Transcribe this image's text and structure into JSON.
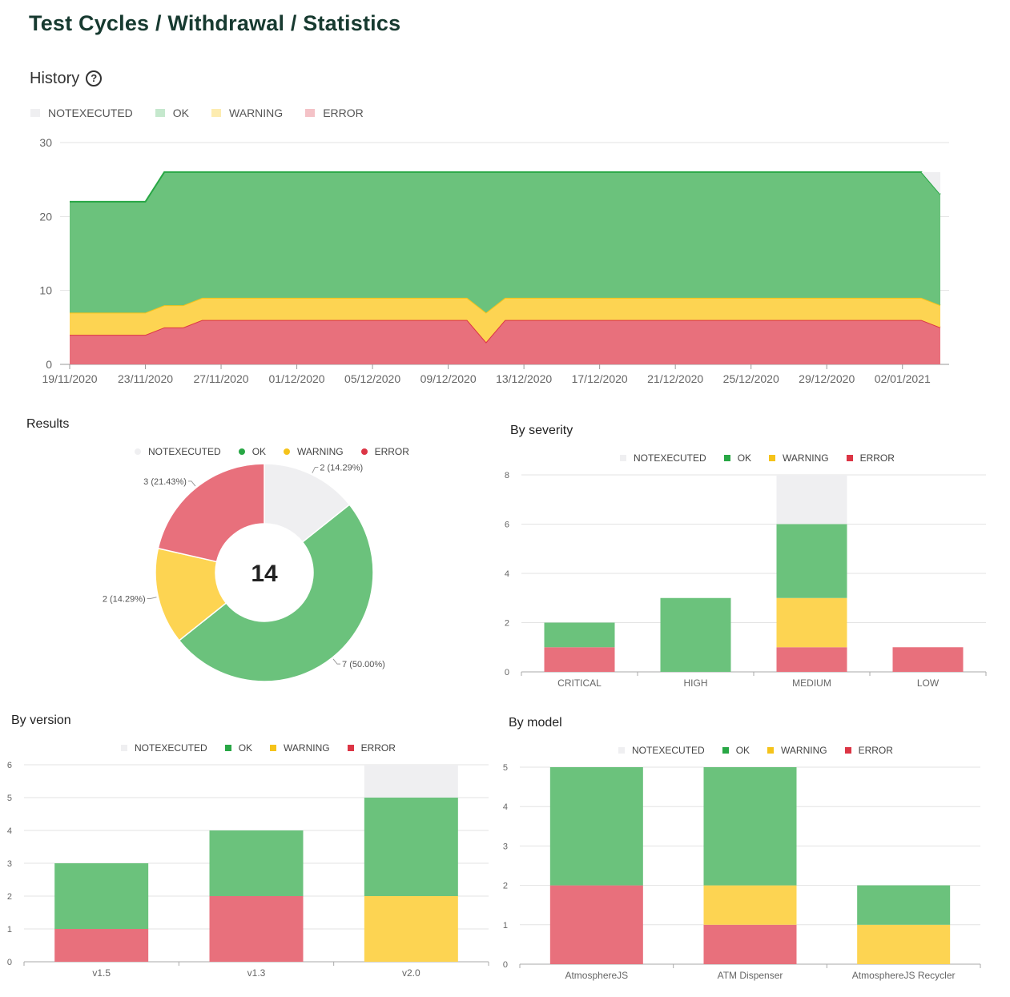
{
  "page": {
    "title": "Test Cycles / Withdrawal / Statistics"
  },
  "history": {
    "title": "History",
    "help_icon": "question-circle-icon"
  },
  "legend": {
    "notexecuted": "NOTEXECUTED",
    "ok": "OK",
    "warning": "WARNING",
    "error": "ERROR"
  },
  "colors": {
    "notexecuted": "#efeff1",
    "ok": "#6bc27c",
    "warning": "#fdd452",
    "error": "#e8707c",
    "ok_line": "#28a745",
    "warning_line": "#f5c31a",
    "error_line": "#dc3545"
  },
  "results": {
    "title": "Results",
    "total": "14"
  },
  "severity": {
    "title": "By severity"
  },
  "version": {
    "title": "By version"
  },
  "model": {
    "title": "By model"
  },
  "chart_data": [
    {
      "id": "history",
      "type": "area",
      "stacked": true,
      "x_tick_labels": [
        "19/11/2020",
        "23/11/2020",
        "27/11/2020",
        "01/12/2020",
        "05/12/2020",
        "09/12/2020",
        "13/12/2020",
        "17/12/2020",
        "21/12/2020",
        "25/12/2020",
        "29/12/2020",
        "02/01/2021"
      ],
      "x_start": "19/11/2020",
      "x_end": "04/01/2021",
      "ylim": [
        0,
        30
      ],
      "y_ticks": [
        0,
        10,
        20,
        30
      ],
      "series": [
        {
          "name": "ERROR",
          "points": [
            [
              "19/11/2020",
              4
            ],
            [
              "23/11/2020",
              4
            ],
            [
              "24/11/2020",
              5
            ],
            [
              "25/11/2020",
              5
            ],
            [
              "26/11/2020",
              6
            ],
            [
              "10/12/2020",
              6
            ],
            [
              "11/12/2020",
              3
            ],
            [
              "12/12/2020",
              6
            ],
            [
              "03/01/2021",
              6
            ],
            [
              "04/01/2021",
              5
            ]
          ]
        },
        {
          "name": "WARNING",
          "points": [
            [
              "19/11/2020",
              3
            ],
            [
              "23/11/2020",
              3
            ],
            [
              "24/11/2020",
              3
            ],
            [
              "25/11/2020",
              3
            ],
            [
              "26/11/2020",
              3
            ],
            [
              "10/12/2020",
              3
            ],
            [
              "11/12/2020",
              4
            ],
            [
              "12/12/2020",
              3
            ],
            [
              "03/01/2021",
              3
            ],
            [
              "04/01/2021",
              3
            ]
          ]
        },
        {
          "name": "OK",
          "points": [
            [
              "19/11/2020",
              15
            ],
            [
              "23/11/2020",
              15
            ],
            [
              "24/11/2020",
              18
            ],
            [
              "25/11/2020",
              18
            ],
            [
              "26/11/2020",
              17
            ],
            [
              "10/12/2020",
              17
            ],
            [
              "11/12/2020",
              19
            ],
            [
              "12/12/2020",
              17
            ],
            [
              "03/01/2021",
              17
            ],
            [
              "04/01/2021",
              15
            ]
          ]
        },
        {
          "name": "NOTEXECUTED",
          "points": [
            [
              "19/11/2020",
              0
            ],
            [
              "23/11/2020",
              0
            ],
            [
              "24/11/2020",
              0
            ],
            [
              "25/11/2020",
              0
            ],
            [
              "26/11/2020",
              0
            ],
            [
              "10/12/2020",
              0
            ],
            [
              "11/12/2020",
              0
            ],
            [
              "12/12/2020",
              0
            ],
            [
              "03/01/2021",
              0
            ],
            [
              "04/01/2021",
              3
            ]
          ]
        }
      ]
    },
    {
      "id": "results",
      "type": "pie",
      "slices": [
        {
          "name": "NOTEXECUTED",
          "value": 2,
          "label": "2 (14.29%)"
        },
        {
          "name": "OK",
          "value": 7,
          "label": "7 (50.00%)"
        },
        {
          "name": "WARNING",
          "value": 2,
          "label": "2 (14.29%)"
        },
        {
          "name": "ERROR",
          "value": 3,
          "label": "3 (21.43%)"
        }
      ]
    },
    {
      "id": "severity",
      "type": "bar",
      "stacked": true,
      "categories": [
        "CRITICAL",
        "HIGH",
        "MEDIUM",
        "LOW"
      ],
      "ylim": [
        0,
        8
      ],
      "y_ticks": [
        0,
        2,
        4,
        6,
        8
      ],
      "series": [
        {
          "name": "ERROR",
          "values": [
            1,
            0,
            1,
            1
          ]
        },
        {
          "name": "WARNING",
          "values": [
            0,
            0,
            2,
            0
          ]
        },
        {
          "name": "OK",
          "values": [
            1,
            3,
            3,
            0
          ]
        },
        {
          "name": "NOTEXECUTED",
          "values": [
            0,
            0,
            2,
            0
          ]
        }
      ]
    },
    {
      "id": "version",
      "type": "bar",
      "stacked": true,
      "categories": [
        "v1.5",
        "v1.3",
        "v2.0"
      ],
      "ylim": [
        0,
        6
      ],
      "y_ticks": [
        0,
        1,
        2,
        3,
        4,
        5,
        6
      ],
      "series": [
        {
          "name": "ERROR",
          "values": [
            1,
            2,
            0
          ]
        },
        {
          "name": "WARNING",
          "values": [
            0,
            0,
            2
          ]
        },
        {
          "name": "OK",
          "values": [
            2,
            2,
            3
          ]
        },
        {
          "name": "NOTEXECUTED",
          "values": [
            0,
            0,
            1
          ]
        }
      ]
    },
    {
      "id": "model",
      "type": "bar",
      "stacked": true,
      "categories": [
        "AtmosphereJS",
        "ATM Dispenser",
        "AtmosphereJS Recycler"
      ],
      "ylim": [
        0,
        5
      ],
      "y_ticks": [
        0,
        1,
        2,
        3,
        4,
        5
      ],
      "series": [
        {
          "name": "ERROR",
          "values": [
            2,
            1,
            0
          ]
        },
        {
          "name": "WARNING",
          "values": [
            0,
            1,
            1
          ]
        },
        {
          "name": "OK",
          "values": [
            3,
            3,
            1
          ]
        },
        {
          "name": "NOTEXECUTED",
          "values": [
            0,
            0,
            0
          ]
        }
      ]
    }
  ]
}
